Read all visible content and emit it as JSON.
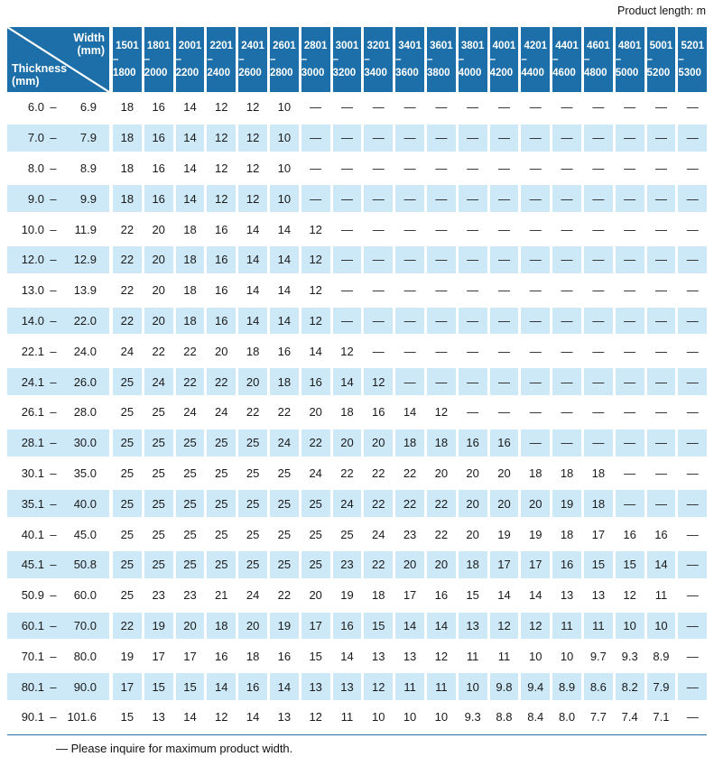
{
  "page": {
    "product_length_label": "Product length: m",
    "footnote": "— Please inquire for maximum product width."
  },
  "colors": {
    "header_blue": "#1c6fa9",
    "row_alt_blue": "#cde8f7",
    "rule_blue": "#2471a9",
    "text": "#1a1a1a"
  },
  "table": {
    "corner": {
      "width_line1": "Width",
      "width_line2": "(mm)",
      "thickness_line1": "Thickness",
      "thickness_line2": "(mm)"
    },
    "columns": [
      {
        "from": "1501",
        "to": "–1800"
      },
      {
        "from": "1801",
        "to": "–2000"
      },
      {
        "from": "2001",
        "to": "–2200"
      },
      {
        "from": "2201",
        "to": "–2400"
      },
      {
        "from": "2401",
        "to": "–2600"
      },
      {
        "from": "2601",
        "to": "–2800"
      },
      {
        "from": "2801",
        "to": "–3000"
      },
      {
        "from": "3001",
        "to": "–3200"
      },
      {
        "from": "3201",
        "to": "–3400"
      },
      {
        "from": "3401",
        "to": "–3600"
      },
      {
        "from": "3601",
        "to": "–3800"
      },
      {
        "from": "3801",
        "to": "–4000"
      },
      {
        "from": "4001",
        "to": "–4200"
      },
      {
        "from": "4201",
        "to": "–4400"
      },
      {
        "from": "4401",
        "to": "–4600"
      },
      {
        "from": "4601",
        "to": "–4800"
      },
      {
        "from": "4801",
        "to": "–5000"
      },
      {
        "from": "5001",
        "to": "–5200"
      },
      {
        "from": "5201",
        "to": "–5300"
      }
    ],
    "rows": [
      {
        "min": "6.0",
        "max": "6.9",
        "values": [
          "18",
          "16",
          "14",
          "12",
          "12",
          "10",
          "—",
          "—",
          "—",
          "—",
          "—",
          "—",
          "—",
          "—",
          "—",
          "—",
          "—",
          "—",
          "—"
        ]
      },
      {
        "min": "7.0",
        "max": "7.9",
        "values": [
          "18",
          "16",
          "14",
          "12",
          "12",
          "10",
          "—",
          "—",
          "—",
          "—",
          "—",
          "—",
          "—",
          "—",
          "—",
          "—",
          "—",
          "—",
          "—"
        ]
      },
      {
        "min": "8.0",
        "max": "8.9",
        "values": [
          "18",
          "16",
          "14",
          "12",
          "12",
          "10",
          "—",
          "—",
          "—",
          "—",
          "—",
          "—",
          "—",
          "—",
          "—",
          "—",
          "—",
          "—",
          "—"
        ]
      },
      {
        "min": "9.0",
        "max": "9.9",
        "values": [
          "18",
          "16",
          "14",
          "12",
          "12",
          "10",
          "—",
          "—",
          "—",
          "—",
          "—",
          "—",
          "—",
          "—",
          "—",
          "—",
          "—",
          "—",
          "—"
        ]
      },
      {
        "min": "10.0",
        "max": "11.9",
        "values": [
          "22",
          "20",
          "18",
          "16",
          "14",
          "14",
          "12",
          "—",
          "—",
          "—",
          "—",
          "—",
          "—",
          "—",
          "—",
          "—",
          "—",
          "—",
          "—"
        ]
      },
      {
        "min": "12.0",
        "max": "12.9",
        "values": [
          "22",
          "20",
          "18",
          "16",
          "14",
          "14",
          "12",
          "—",
          "—",
          "—",
          "—",
          "—",
          "—",
          "—",
          "—",
          "—",
          "—",
          "—",
          "—"
        ]
      },
      {
        "min": "13.0",
        "max": "13.9",
        "values": [
          "22",
          "20",
          "18",
          "16",
          "14",
          "14",
          "12",
          "—",
          "—",
          "—",
          "—",
          "—",
          "—",
          "—",
          "—",
          "—",
          "—",
          "—",
          "—"
        ]
      },
      {
        "min": "14.0",
        "max": "22.0",
        "values": [
          "22",
          "20",
          "18",
          "16",
          "14",
          "14",
          "12",
          "—",
          "—",
          "—",
          "—",
          "—",
          "—",
          "—",
          "—",
          "—",
          "—",
          "—",
          "—"
        ]
      },
      {
        "min": "22.1",
        "max": "24.0",
        "values": [
          "24",
          "22",
          "22",
          "20",
          "18",
          "16",
          "14",
          "12",
          "—",
          "—",
          "—",
          "—",
          "—",
          "—",
          "—",
          "—",
          "—",
          "—",
          "—"
        ]
      },
      {
        "min": "24.1",
        "max": "26.0",
        "values": [
          "25",
          "24",
          "22",
          "22",
          "20",
          "18",
          "16",
          "14",
          "12",
          "—",
          "—",
          "—",
          "—",
          "—",
          "—",
          "—",
          "—",
          "—",
          "—"
        ]
      },
      {
        "min": "26.1",
        "max": "28.0",
        "values": [
          "25",
          "25",
          "24",
          "24",
          "22",
          "22",
          "20",
          "18",
          "16",
          "14",
          "12",
          "—",
          "—",
          "—",
          "—",
          "—",
          "—",
          "—",
          "—"
        ]
      },
      {
        "min": "28.1",
        "max": "30.0",
        "values": [
          "25",
          "25",
          "25",
          "25",
          "25",
          "24",
          "22",
          "20",
          "20",
          "18",
          "18",
          "16",
          "16",
          "—",
          "—",
          "—",
          "—",
          "—",
          "—"
        ]
      },
      {
        "min": "30.1",
        "max": "35.0",
        "values": [
          "25",
          "25",
          "25",
          "25",
          "25",
          "25",
          "24",
          "22",
          "22",
          "22",
          "20",
          "20",
          "20",
          "18",
          "18",
          "18",
          "—",
          "—",
          "—"
        ]
      },
      {
        "min": "35.1",
        "max": "40.0",
        "values": [
          "25",
          "25",
          "25",
          "25",
          "25",
          "25",
          "25",
          "24",
          "22",
          "22",
          "22",
          "20",
          "20",
          "20",
          "19",
          "18",
          "—",
          "—",
          "—"
        ]
      },
      {
        "min": "40.1",
        "max": "45.0",
        "values": [
          "25",
          "25",
          "25",
          "25",
          "25",
          "25",
          "25",
          "25",
          "24",
          "23",
          "22",
          "20",
          "19",
          "19",
          "18",
          "17",
          "16",
          "16",
          "—"
        ]
      },
      {
        "min": "45.1",
        "max": "50.8",
        "values": [
          "25",
          "25",
          "25",
          "25",
          "25",
          "25",
          "25",
          "23",
          "22",
          "20",
          "20",
          "18",
          "17",
          "17",
          "16",
          "15",
          "15",
          "14",
          "—"
        ]
      },
      {
        "min": "50.9",
        "max": "60.0",
        "values": [
          "25",
          "23",
          "23",
          "21",
          "24",
          "22",
          "20",
          "19",
          "18",
          "17",
          "16",
          "15",
          "14",
          "14",
          "13",
          "13",
          "12",
          "11",
          "—"
        ]
      },
      {
        "min": "60.1",
        "max": "70.0",
        "values": [
          "22",
          "19",
          "20",
          "18",
          "20",
          "19",
          "17",
          "16",
          "15",
          "14",
          "14",
          "13",
          "12",
          "12",
          "11",
          "11",
          "10",
          "10",
          "—"
        ]
      },
      {
        "min": "70.1",
        "max": "80.0",
        "values": [
          "19",
          "17",
          "17",
          "16",
          "18",
          "16",
          "15",
          "14",
          "13",
          "13",
          "12",
          "11",
          "11",
          "10",
          "10",
          "9.7",
          "9.3",
          "8.9",
          "—"
        ]
      },
      {
        "min": "80.1",
        "max": "90.0",
        "values": [
          "17",
          "15",
          "15",
          "14",
          "16",
          "14",
          "13",
          "13",
          "12",
          "11",
          "11",
          "10",
          "9.8",
          "9.4",
          "8.9",
          "8.6",
          "8.2",
          "7.9",
          "—"
        ]
      },
      {
        "min": "90.1",
        "max": "101.6",
        "values": [
          "15",
          "13",
          "14",
          "12",
          "14",
          "13",
          "12",
          "11",
          "10",
          "10",
          "10",
          "9.3",
          "8.8",
          "8.4",
          "8.0",
          "7.7",
          "7.4",
          "7.1",
          "—"
        ]
      }
    ],
    "range_separator": "–"
  }
}
